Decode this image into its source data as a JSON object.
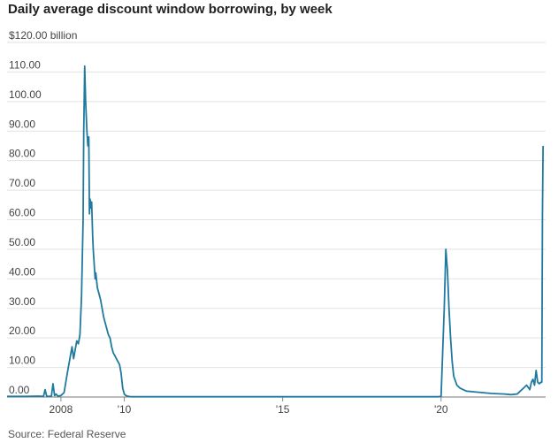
{
  "title": "Daily average discount window borrowing, by week",
  "source": "Source: Federal Reserve",
  "chart_data": {
    "type": "line",
    "title": "Daily average discount window borrowing, by week",
    "xlabel": "",
    "ylabel": "",
    "ylim": [
      0,
      120
    ],
    "xlim": [
      2006.3,
      2023.3
    ],
    "y_ticks": [
      {
        "value": 120,
        "label": "$120.00 billion"
      },
      {
        "value": 110,
        "label": "110.00"
      },
      {
        "value": 100,
        "label": "100.00"
      },
      {
        "value": 90,
        "label": "90.00"
      },
      {
        "value": 80,
        "label": "80.00"
      },
      {
        "value": 70,
        "label": "70.00"
      },
      {
        "value": 60,
        "label": "60.00"
      },
      {
        "value": 50,
        "label": "50.00"
      },
      {
        "value": 40,
        "label": "40.00"
      },
      {
        "value": 30,
        "label": "30.00"
      },
      {
        "value": 20,
        "label": "20.00"
      },
      {
        "value": 10,
        "label": "10.00"
      },
      {
        "value": 0,
        "label": "0.00"
      }
    ],
    "x_ticks": [
      {
        "value": 2008,
        "label": "2008"
      },
      {
        "value": 2010,
        "label": "'10"
      },
      {
        "value": 2015,
        "label": "'15"
      },
      {
        "value": 2020,
        "label": "'20"
      }
    ],
    "grid": true,
    "color": "#1f7a9e",
    "series": [
      {
        "x": [
          2006.3,
          2006.9,
          2007.3,
          2007.45,
          2007.5,
          2007.55,
          2007.6,
          2007.7,
          2007.75,
          2007.8,
          2007.85,
          2007.9,
          2008.0,
          2008.1,
          2008.2,
          2008.25,
          2008.3,
          2008.35,
          2008.4,
          2008.45,
          2008.5,
          2008.55,
          2008.6,
          2008.65,
          2008.7,
          2008.72,
          2008.75,
          2008.78,
          2008.8,
          2008.82,
          2008.85,
          2008.88,
          2008.9,
          2008.92,
          2008.95,
          2008.97,
          2009.0,
          2009.02,
          2009.05,
          2009.08,
          2009.1,
          2009.15,
          2009.2,
          2009.25,
          2009.3,
          2009.35,
          2009.4,
          2009.45,
          2009.5,
          2009.55,
          2009.6,
          2009.65,
          2009.7,
          2009.75,
          2009.8,
          2009.85,
          2009.9,
          2009.95,
          2010.0,
          2010.05,
          2010.1,
          2010.15,
          2010.2,
          2011.0,
          2012.0,
          2013.0,
          2014.0,
          2015.0,
          2016.0,
          2017.0,
          2018.0,
          2019.0,
          2019.9,
          2020.0,
          2020.1,
          2020.15,
          2020.2,
          2020.25,
          2020.3,
          2020.35,
          2020.4,
          2020.5,
          2020.6,
          2020.7,
          2020.8,
          2021.0,
          2021.3,
          2021.6,
          2022.0,
          2022.2,
          2022.4,
          2022.5,
          2022.6,
          2022.7,
          2022.8,
          2022.85,
          2022.9,
          2022.95,
          2023.0,
          2023.05,
          2023.1,
          2023.15,
          2023.18,
          2023.2,
          2023.22
        ],
        "values": [
          0.2,
          0.2,
          0.3,
          0.2,
          2.5,
          0.3,
          0.2,
          0.3,
          4.5,
          0.5,
          1.0,
          0.3,
          0.5,
          1.5,
          8.0,
          11.0,
          14.0,
          17.0,
          13.0,
          16.0,
          19.0,
          18.0,
          21.0,
          34.0,
          60.0,
          90.0,
          112.0,
          100.0,
          95.0,
          90.0,
          85.0,
          88.0,
          62.0,
          67.0,
          64.0,
          66.0,
          55.0,
          50.0,
          45.0,
          40.0,
          42.0,
          37.0,
          35.0,
          33.0,
          30.0,
          27.0,
          25.0,
          23.0,
          21.0,
          20.0,
          17.0,
          15.0,
          14.0,
          13.0,
          12.0,
          11.0,
          8.0,
          3.0,
          1.0,
          0.5,
          0.3,
          0.2,
          0.1,
          0.1,
          0.1,
          0.1,
          0.1,
          0.1,
          0.1,
          0.1,
          0.1,
          0.1,
          0.1,
          0.2,
          30.0,
          50.0,
          43.0,
          30.0,
          20.0,
          12.0,
          7.0,
          4.0,
          3.0,
          2.5,
          2.0,
          1.8,
          1.5,
          1.2,
          1.0,
          0.8,
          1.0,
          2.0,
          3.0,
          4.0,
          2.5,
          5.0,
          6.0,
          4.0,
          9.0,
          5.0,
          4.5,
          5.0,
          5.0,
          62.0,
          85.0
        ]
      }
    ]
  }
}
